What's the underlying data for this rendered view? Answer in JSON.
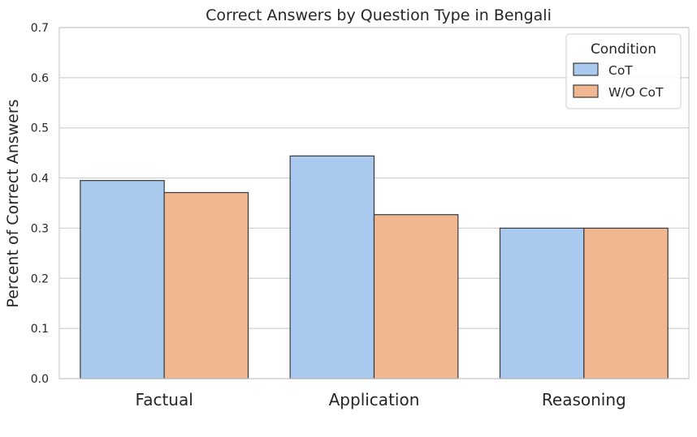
{
  "chart_data": {
    "type": "bar",
    "title": "Correct Answers by Question Type in Bengali",
    "xlabel": "",
    "ylabel": "Percent of Correct Answers",
    "categories": [
      "Factual",
      "Application",
      "Reasoning"
    ],
    "series": [
      {
        "name": "CoT",
        "values": [
          0.395,
          0.444,
          0.3
        ],
        "color": "#a9c9ee"
      },
      {
        "name": "W/O CoT",
        "values": [
          0.371,
          0.327,
          0.3
        ],
        "color": "#f0b791"
      }
    ],
    "ylim": [
      0,
      0.7
    ],
    "yticks": [
      "0.0",
      "0.1",
      "0.2",
      "0.3",
      "0.4",
      "0.5",
      "0.6",
      "0.7"
    ],
    "grid": true,
    "legend": {
      "title": "Condition",
      "placement": "top-right"
    },
    "edge_color": "#3a3a3a",
    "grid_color": "#d0d0d0"
  }
}
